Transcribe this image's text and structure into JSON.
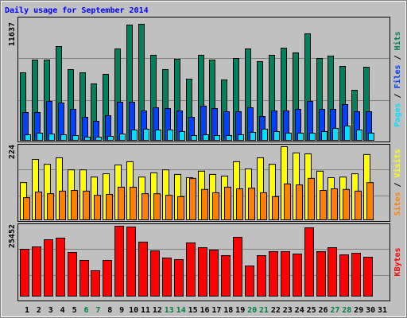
{
  "title": "Daily usage for September 2014",
  "legend_separator": " / ",
  "highlight_color": "#008040",
  "highlight_categories": [
    "6",
    "7",
    "13",
    "14",
    "20",
    "21",
    "27",
    "28"
  ],
  "chart_data": [
    {
      "type": "bar",
      "ylim": [
        0,
        11637
      ],
      "yticks": [
        11637
      ],
      "series": [
        {
          "name": "Hits",
          "color": "#00805c",
          "values": [
            6775,
            8050,
            8050,
            9405,
            7094,
            6775,
            5659,
            6616,
            9166,
            11560,
            11637,
            8528,
            7094,
            8130,
            6137,
            8528,
            8050,
            6058,
            8210,
            9166,
            7891,
            8528,
            9246,
            8768,
            10681,
            8210,
            8449,
            7413,
            5021,
            7333,
            null
          ]
        },
        {
          "name": "Files",
          "color": "#0040ff",
          "values": [
            2790,
            2790,
            3905,
            3746,
            3108,
            2311,
            1913,
            2471,
            3826,
            3826,
            2949,
            3268,
            3188,
            2949,
            2311,
            3427,
            3188,
            2869,
            2869,
            3268,
            2391,
            2949,
            2949,
            3108,
            3905,
            3108,
            3108,
            3587,
            2869,
            2869,
            null
          ]
        },
        {
          "name": "Pages",
          "color": "#00e0ff",
          "values": [
            558,
            717,
            638,
            558,
            478,
            319,
            319,
            399,
            638,
            1036,
            1116,
            1036,
            1036,
            877,
            478,
            558,
            478,
            478,
            558,
            797,
            1116,
            877,
            717,
            717,
            717,
            877,
            1195,
            1435,
            1036,
            717,
            null
          ]
        }
      ]
    },
    {
      "type": "bar",
      "ylim": [
        0,
        224
      ],
      "yticks": [
        224
      ],
      "series": [
        {
          "name": "Visits",
          "color": "#ffff00",
          "values": [
            114,
            185,
            170,
            190,
            153,
            153,
            131,
            141,
            168,
            178,
            131,
            144,
            153,
            139,
            129,
            149,
            139,
            134,
            178,
            156,
            190,
            170,
            224,
            205,
            202,
            149,
            129,
            131,
            141,
            200,
            null
          ]
        },
        {
          "name": "Sites",
          "color": "#ff8000",
          "values": [
            68,
            85,
            80,
            88,
            90,
            88,
            75,
            78,
            100,
            100,
            80,
            80,
            75,
            71,
            127,
            93,
            83,
            100,
            95,
            97,
            83,
            71,
            110,
            107,
            127,
            90,
            95,
            93,
            88,
            114,
            null
          ]
        }
      ]
    },
    {
      "type": "bar",
      "ylim": [
        0,
        25452
      ],
      "yticks": [
        25452
      ],
      "categories": [
        "1",
        "2",
        "3",
        "4",
        "5",
        "6",
        "7",
        "8",
        "9",
        "10",
        "11",
        "12",
        "13",
        "14",
        "15",
        "16",
        "17",
        "18",
        "19",
        "20",
        "21",
        "22",
        "23",
        "24",
        "25",
        "26",
        "27",
        "28",
        "29",
        "30",
        "31"
      ],
      "series": [
        {
          "name": "KBytes",
          "color": "#ff0000",
          "values": [
            17055,
            17925,
            20535,
            21115,
            15895,
            13005,
            9248,
            13005,
            25452,
            25143,
            19652,
            16473,
            13872,
            13294,
            19363,
            17629,
            16762,
            14739,
            21386,
            10982,
            14739,
            16184,
            16184,
            15317,
            24854,
            16184,
            17629,
            15028,
            15606,
            14161,
            null
          ]
        }
      ]
    }
  ]
}
